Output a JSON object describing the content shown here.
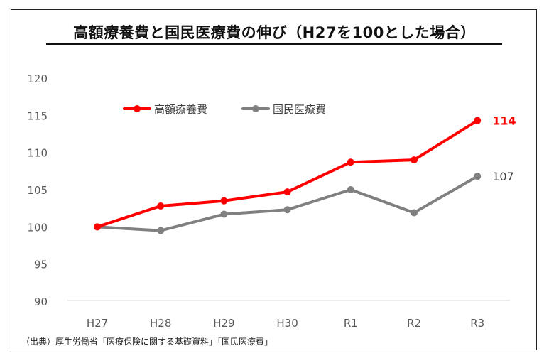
{
  "title": "高額療養費と国民医療費の伸び（H27を100とした場合）",
  "source": "（出典）厚生労働省「医療保険に関する基礎資料」「国民医療費」",
  "colors": {
    "series1": "#ff0000",
    "series2": "#808080",
    "axis_text": "#595959"
  },
  "chart_data": {
    "type": "line",
    "title": "高額療養費と国民医療費の伸び（H27を100とした場合）",
    "categories": [
      "H27",
      "H28",
      "H29",
      "H30",
      "R1",
      "R2",
      "R3"
    ],
    "yticks": [
      "90",
      "95",
      "100",
      "105",
      "110",
      "115",
      "120"
    ],
    "ylim": [
      90,
      120
    ],
    "grid": false,
    "legend": "top-left",
    "series": [
      {
        "name": "高額療養費",
        "values": [
          100,
          102.8,
          103.5,
          104.7,
          108.7,
          109.0,
          114.3
        ],
        "end_label": "114",
        "color": "#ff0000"
      },
      {
        "name": "国民医療費",
        "values": [
          100,
          99.5,
          101.7,
          102.3,
          105.0,
          101.9,
          106.8
        ],
        "end_label": "107",
        "color": "#808080"
      }
    ]
  }
}
